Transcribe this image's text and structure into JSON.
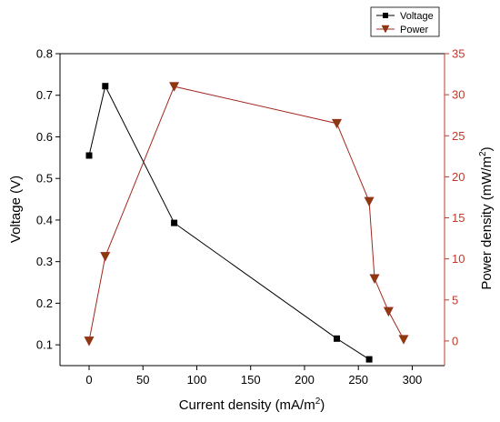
{
  "chart_data": {
    "type": "line",
    "xlabel": "Current density (mA/m",
    "xlabel_sup": "2",
    "xlabel_tail": ")",
    "ylabel_left": "Voltage (V)",
    "ylabel_right": "Power density (mW/m",
    "ylabel_right_sup": "2",
    "ylabel_right_tail": ")",
    "xlim": [
      -27,
      330
    ],
    "ylim_left": [
      0.05,
      0.8
    ],
    "ylim_right": [
      -3,
      35
    ],
    "x_ticks": [
      "0",
      "50",
      "100",
      "150",
      "200",
      "250",
      "300"
    ],
    "x_tick_values": [
      0,
      50,
      100,
      150,
      200,
      250,
      300
    ],
    "y_left_ticks": [
      "0.1",
      "0.2",
      "0.3",
      "0.4",
      "0.5",
      "0.6",
      "0.7",
      "0.8"
    ],
    "y_left_tick_values": [
      0.1,
      0.2,
      0.3,
      0.4,
      0.5,
      0.6,
      0.7,
      0.8
    ],
    "y_right_ticks": [
      "0",
      "5",
      "10",
      "15",
      "20",
      "25",
      "30",
      "35"
    ],
    "y_right_tick_values": [
      0,
      5,
      10,
      15,
      20,
      25,
      30,
      35
    ],
    "legend_position": "top-right",
    "grid": false,
    "series": [
      {
        "name": "Voltage",
        "axis": "left",
        "marker": "square",
        "color": "#000000",
        "x": [
          0,
          15,
          79,
          230,
          260
        ],
        "y": [
          0.555,
          0.722,
          0.393,
          0.115,
          0.065
        ]
      },
      {
        "name": "Power",
        "axis": "right",
        "marker": "triangle-down",
        "color": "#a0281e",
        "fill": "#8b3a10",
        "x": [
          0,
          15,
          79,
          230,
          260,
          265,
          278,
          292
        ],
        "y": [
          0,
          10.3,
          31,
          26.5,
          17,
          7.6,
          3.6,
          0.2
        ]
      }
    ]
  }
}
